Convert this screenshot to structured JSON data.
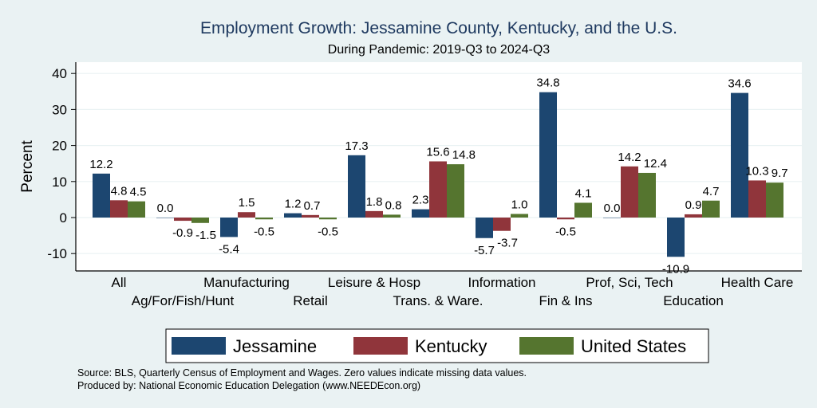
{
  "chart_data": {
    "type": "bar",
    "title": "Employment Growth: Jessamine County, Kentucky, and the U.S.",
    "subtitle": "During Pandemic: 2019-Q3 to 2024-Q3",
    "xlabel": "",
    "ylabel": "Percent",
    "ylim": [
      -15,
      43
    ],
    "yticks": [
      -10,
      0,
      10,
      20,
      30,
      40
    ],
    "grid": true,
    "legend_position": "bottom",
    "categories": [
      "All",
      "Ag/For/Fish/Hunt",
      "Manufacturing",
      "Retail",
      "Leisure & Hosp",
      "Trans. & Ware.",
      "Information",
      "Fin & Ins",
      "Prof, Sci, Tech",
      "Education",
      "Health Care"
    ],
    "series": [
      {
        "name": "Jessamine",
        "color": "#1c4670",
        "values": [
          12.2,
          0.0,
          -5.4,
          1.2,
          17.3,
          2.3,
          -5.7,
          34.8,
          0.0,
          -10.9,
          34.6
        ]
      },
      {
        "name": "Kentucky",
        "color": "#90353b",
        "values": [
          4.8,
          -0.9,
          1.5,
          0.7,
          1.8,
          15.6,
          -3.7,
          -0.5,
          14.2,
          0.9,
          10.3
        ]
      },
      {
        "name": "United States",
        "color": "#55752f",
        "values": [
          4.5,
          -1.5,
          -0.5,
          -0.5,
          0.8,
          14.8,
          1.0,
          4.1,
          12.4,
          4.7,
          9.7
        ]
      }
    ],
    "notes": [
      "Source: BLS, Quarterly Census of Employment and Wages. Zero values indicate missing data values.",
      "Produced by: National Economic Education Delegation (www.NEEDEcon.org)"
    ]
  }
}
